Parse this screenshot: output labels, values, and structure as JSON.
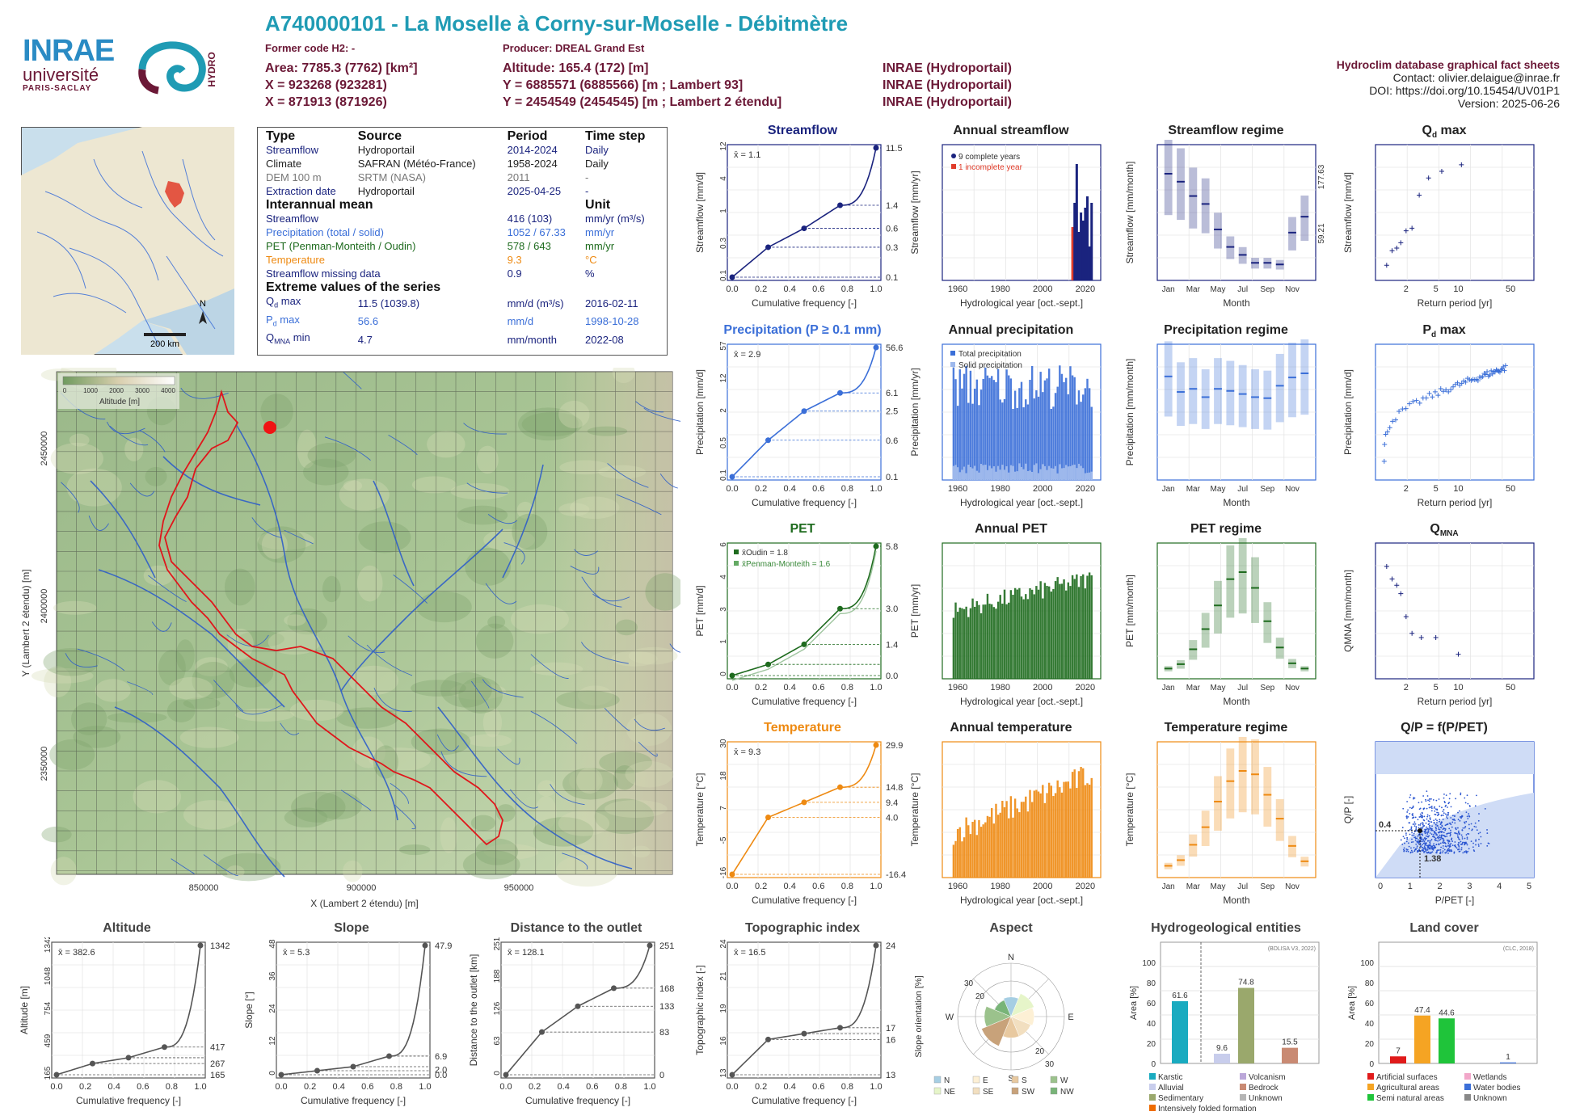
{
  "header": {
    "title": "A740000101 - La Moselle à Corny-sur-Moselle - Débitmètre",
    "former_code": "Former code H2: -",
    "producer": "Producer: DREAL Grand Est",
    "area": "Area: 7785.3 (7762) [km²]",
    "altitude": "Altitude: 165.4 (172) [m]",
    "x93": "X = 923268 (923281)",
    "y93": "Y = 6885571 (6885566) [m ; Lambert 93]",
    "x2e": "X = 871913 (871926)",
    "y2e": "Y = 2454549 (2454545) [m ; Lambert 2 étendu]",
    "src1": "INRAE (Hydroportail)",
    "src2": "INRAE (Hydroportail)",
    "src3": "INRAE (Hydroportail)",
    "right_title": "Hydroclim database graphical fact sheets",
    "contact": "Contact: olivier.delaigue@inrae.fr",
    "doi": "DOI: https://doi.org/10.15454/UV01P1",
    "version": "Version: 2025-06-26"
  },
  "logos": {
    "inrae": "INRAE",
    "universite": "université",
    "paris_saclay": "PARIS-SACLAY",
    "hydro": "HYDRO"
  },
  "locator_map": {
    "scale": "200 km",
    "north": "N",
    "accent": "#e03c2a"
  },
  "info_table": {
    "h_type": "Type",
    "h_source": "Source",
    "h_period": "Period",
    "h_timestep": "Time step",
    "rows": [
      {
        "type": "Streamflow",
        "source": "Hydroportail",
        "period": "2014-2024",
        "step": "Daily",
        "color": "#1a237e"
      },
      {
        "type": "Climate",
        "source": "SAFRAN (Météo-France)",
        "period": "1958-2024",
        "step": "Daily",
        "color": "#222222"
      },
      {
        "type": "DEM 100 m",
        "source": "SRTM (NASA)",
        "period": "2011",
        "step": "-",
        "color": "#777777"
      },
      {
        "type": "Extraction date",
        "source": "Hydroportail",
        "period": "2025-04-25",
        "step": "-",
        "color": "#1a237e"
      }
    ],
    "h_interannual": "Interannual mean",
    "h_unit": "Unit",
    "means": [
      {
        "label": "Streamflow",
        "value": "416 (103)",
        "unit": "mm/yr (m³/s)",
        "color": "#1a237e"
      },
      {
        "label": "Precipitation (total / solid)",
        "value": "1052 / 67.33",
        "unit": "mm/yr",
        "color": "#3b6fd8"
      },
      {
        "label": "PET (Penman-Monteith / Oudin)",
        "value": "578 / 643",
        "unit": "mm/yr",
        "color": "#1e6b1e"
      },
      {
        "label": "Temperature",
        "value": "9.3",
        "unit": "°C",
        "color": "#ee8a12"
      },
      {
        "label": "Streamflow missing data",
        "value": "0.9",
        "unit": "%",
        "color": "#1a237e"
      }
    ],
    "h_extreme": "Extreme values of the series",
    "extremes": [
      {
        "label": "Qd max",
        "value": "11.5 (1039.8)",
        "unit": "mm/d (m³/s)",
        "date": "2016-02-11",
        "color": "#1a237e"
      },
      {
        "label": "Pd max",
        "value": "56.6",
        "unit": "mm/d",
        "date": "1998-10-28",
        "color": "#3b6fd8"
      },
      {
        "label": "QMNA min",
        "value": "4.7",
        "unit": "mm/month",
        "date": "2022-08",
        "color": "#1a237e"
      }
    ]
  },
  "relief_map": {
    "legend_title": "Altitude [m]",
    "legend_ticks": [
      "0",
      "1000",
      "2000",
      "3000",
      "4000"
    ],
    "xlabel": "X (Lambert 2 étendu) [m]",
    "ylabel": "Y (Lambert 2 étendu) [m]",
    "xticks": [
      "850000",
      "900000",
      "950000"
    ],
    "yticks": [
      "2450000",
      "2400000",
      "2350000"
    ]
  },
  "chart_data": [
    {
      "id": "streamflow",
      "type": "line",
      "title": "Streamflow",
      "xlabel": "Cumulative frequency [-]",
      "ylabel": "Streamflow [mm/d]",
      "color": "#1a237e",
      "ylog": true,
      "mean_label": "x̄ = 1.1",
      "x": [
        0,
        0.25,
        0.5,
        0.75,
        1.0
      ],
      "y": [
        0.1,
        0.3,
        0.6,
        1.4,
        11.5
      ],
      "right_ticks": [
        "11.5",
        "1.4",
        "0.6",
        "0.3",
        "0.1"
      ]
    },
    {
      "id": "annual_streamflow",
      "type": "bar",
      "title": "Annual streamflow",
      "xlabel": "Hydrological year [oct.-sept.]",
      "ylabel": "Streamflow [mm/yr]",
      "color": "#1a237e",
      "legend": [
        "9 complete years",
        "1 incomplete year"
      ],
      "x": [
        2014,
        2015,
        2016,
        2017,
        2018,
        2019,
        2020,
        2021,
        2022,
        2023
      ],
      "y": [
        330,
        480,
        720,
        300,
        420,
        370,
        450,
        520,
        210,
        480
      ]
    },
    {
      "id": "streamflow_regime",
      "type": "bar",
      "title": "Streamflow regime",
      "xlabel": "Month",
      "ylabel": "Streamflow [mm/month]",
      "color": "#1a237e",
      "categories": [
        "Jan",
        "Feb",
        "Mar",
        "Apr",
        "May",
        "Jun",
        "Jul",
        "Aug",
        "Sep",
        "Oct",
        "Nov",
        "Dec"
      ],
      "y": [
        65,
        60,
        51,
        46,
        30,
        19,
        14,
        9,
        9,
        8,
        28,
        38
      ],
      "right_ticks": [
        "177.63",
        "59.21"
      ]
    },
    {
      "id": "qd_max",
      "type": "scatter",
      "title": "Qd max",
      "xlabel": "Return period [yr]",
      "ylabel": "Streamflow [mm/d]",
      "color": "#1a237e",
      "xticks": [
        "2",
        "5",
        "10",
        "50"
      ],
      "x": [
        1.1,
        1.3,
        1.5,
        1.7,
        2.0,
        2.4,
        3.0,
        4.0,
        6.0,
        11.0
      ],
      "y": [
        3.9,
        5.0,
        5.2,
        5.6,
        6.5,
        6.7,
        9.2,
        10.5,
        11.0,
        11.5
      ]
    },
    {
      "id": "precipitation",
      "type": "line",
      "title": "Precipitation (P ≥ 0.1 mm)",
      "xlabel": "Cumulative frequency [-]",
      "ylabel": "Precipitation [mm/d]",
      "color": "#3b6fd8",
      "ylog": true,
      "mean_label": "x̄ = 2.9",
      "x": [
        0,
        0.25,
        0.5,
        0.75,
        1.0
      ],
      "y": [
        0.1,
        0.6,
        2.5,
        6.1,
        56.6
      ],
      "right_ticks": [
        "56.6",
        "6.1",
        "2.5",
        "0.6",
        "0.1"
      ]
    },
    {
      "id": "annual_precipitation",
      "type": "bar",
      "title": "Annual precipitation",
      "xlabel": "Hydrological year [oct.-sept.]",
      "ylabel": "Precipitation [mm/yr]",
      "color": "#3b6fd8",
      "legend": [
        "Total precipitation",
        "Solid precipitation"
      ]
    },
    {
      "id": "precipitation_regime",
      "type": "bar",
      "title": "Precipitation regime",
      "xlabel": "Month",
      "ylabel": "Precipitation [mm/month]",
      "color": "#3b6fd8",
      "categories": [
        "Jan",
        "Feb",
        "Mar",
        "Apr",
        "May",
        "Jun",
        "Jul",
        "Aug",
        "Sep",
        "Oct",
        "Nov",
        "Dec"
      ],
      "y": [
        97,
        82,
        85,
        77,
        85,
        83,
        80,
        77,
        76,
        88,
        96,
        100
      ]
    },
    {
      "id": "pd_max",
      "type": "scatter",
      "title": "Pd max",
      "xlabel": "Return period [yr]",
      "ylabel": "Precipitation [mm/d]",
      "color": "#3b6fd8",
      "xticks": [
        "2",
        "5",
        "10",
        "50"
      ]
    },
    {
      "id": "pet",
      "type": "line",
      "title": "PET",
      "xlabel": "Cumulative frequency [-]",
      "ylabel": "PET [mm/d]",
      "color": "#1e6b1e",
      "legend": [
        "x̄Oudin = 1.8",
        "x̄Penman-Monteith = 1.6"
      ],
      "x": [
        0,
        0.25,
        0.5,
        0.75,
        1.0
      ],
      "y": [
        0.0,
        0.5,
        1.4,
        3.0,
        5.8
      ],
      "right_ticks": [
        "5.8",
        "3.0",
        "1.4",
        "0.0"
      ]
    },
    {
      "id": "annual_pet",
      "type": "bar",
      "title": "Annual PET",
      "xlabel": "Hydrological year [oct.-sept.]",
      "ylabel": "PET [mm/yr]",
      "color": "#1e6b1e"
    },
    {
      "id": "pet_regime",
      "type": "bar",
      "title": "PET regime",
      "xlabel": "Month",
      "ylabel": "PET [mm/month]",
      "color": "#1e6b1e",
      "categories": [
        "Jan",
        "Feb",
        "Mar",
        "Apr",
        "May",
        "Jun",
        "Jul",
        "Aug",
        "Sep",
        "Oct",
        "Nov",
        "Dec"
      ],
      "y": [
        8,
        13,
        30,
        53,
        80,
        110,
        118,
        100,
        62,
        32,
        14,
        8
      ]
    },
    {
      "id": "qmna",
      "type": "scatter",
      "title": "QMNA",
      "xlabel": "Return period [yr]",
      "ylabel": "QMNA [mm/month]",
      "color": "#1a237e",
      "xticks": [
        "2",
        "5",
        "10",
        "50"
      ],
      "x": [
        1.1,
        1.3,
        1.5,
        1.7,
        2.0,
        2.4,
        3.2,
        5.0,
        10.0
      ],
      "y": [
        8.9,
        8.3,
        8.0,
        7.6,
        6.5,
        5.7,
        5.5,
        5.5,
        4.7
      ]
    },
    {
      "id": "temperature",
      "type": "line",
      "title": "Temperature",
      "xlabel": "Cumulative frequency [-]",
      "ylabel": "Temperature [°C]",
      "color": "#ee8a12",
      "mean_label": "x̄ = 9.3",
      "x": [
        0,
        0.25,
        0.5,
        0.75,
        1.0
      ],
      "y": [
        -16.4,
        4.0,
        9.4,
        14.8,
        29.9
      ],
      "right_ticks": [
        "29.9",
        "14.8",
        "9.4",
        "4.0",
        "-16.4"
      ]
    },
    {
      "id": "annual_temperature",
      "type": "bar",
      "title": "Annual temperature",
      "xlabel": "Hydrological year [oct.-sept.]",
      "ylabel": "Temperature [°C]",
      "color": "#ee8a12"
    },
    {
      "id": "temperature_regime",
      "type": "bar",
      "title": "Temperature regime",
      "xlabel": "Month",
      "ylabel": "Temperature [°C]",
      "color": "#ee8a12",
      "categories": [
        "Jan",
        "Feb",
        "Mar",
        "Apr",
        "May",
        "Jun",
        "Jul",
        "Aug",
        "Sep",
        "Oct",
        "Nov",
        "Dec"
      ],
      "y": [
        1.5,
        2.5,
        5.2,
        8.3,
        12.8,
        16.4,
        18.2,
        17.6,
        14.0,
        9.8,
        5.0,
        2.3
      ]
    },
    {
      "id": "qp_ppet",
      "type": "scatter",
      "title": "Q/P = f(P/PET)",
      "xlabel": "P/PET [-]",
      "ylabel": "Q/P [-]",
      "color": "#2a55d0",
      "annotations": [
        "0.4",
        "1.38"
      ]
    },
    {
      "id": "altitude",
      "type": "line",
      "title": "Altitude",
      "xlabel": "Cumulative frequency [-]",
      "ylabel": "Altitude [m]",
      "color": "#555555",
      "mean_label": "x̄ = 382.6",
      "x": [
        0,
        0.25,
        0.5,
        0.75,
        1.0
      ],
      "y": [
        165,
        267,
        320,
        417,
        1342
      ],
      "right_ticks": [
        "1342",
        "417",
        "267",
        "165"
      ]
    },
    {
      "id": "slope",
      "type": "line",
      "title": "Slope",
      "xlabel": "Cumulative frequency [-]",
      "ylabel": "Slope [°]",
      "color": "#555555",
      "mean_label": "x̄ = 5.3",
      "x": [
        0,
        0.25,
        0.5,
        0.75,
        1.0
      ],
      "y": [
        0.0,
        1.5,
        3.0,
        6.9,
        47.9
      ],
      "right_ticks": [
        "47.9",
        "6.9",
        "2.0",
        "0.0"
      ]
    },
    {
      "id": "distance",
      "type": "line",
      "title": "Distance to the outlet",
      "xlabel": "Cumulative frequency [-]",
      "ylabel": "Distance to the outlet [km]",
      "color": "#555555",
      "mean_label": "x̄ = 128.1",
      "x": [
        0,
        0.25,
        0.5,
        0.75,
        1.0
      ],
      "y": [
        0,
        83,
        133,
        168,
        251
      ],
      "right_ticks": [
        "251",
        "168",
        "133",
        "83",
        "0"
      ]
    },
    {
      "id": "topographic_index",
      "type": "line",
      "title": "Topographic index",
      "xlabel": "Cumulative frequency [-]",
      "ylabel": "Topographic index [-]",
      "color": "#555555",
      "mean_label": "x̄ = 16.5",
      "x": [
        0,
        0.25,
        0.5,
        0.75,
        1.0
      ],
      "y": [
        13,
        16,
        16.5,
        17,
        24
      ],
      "right_ticks": [
        "24",
        "17",
        "16",
        "13"
      ]
    },
    {
      "id": "aspect",
      "type": "pie",
      "title": "Aspect",
      "ylabel": "Slope orientation [%]",
      "categories": [
        "N",
        "NE",
        "E",
        "SE",
        "S",
        "SW",
        "W",
        "NW"
      ],
      "values": [
        11,
        14,
        13,
        12,
        12,
        18,
        15,
        10
      ],
      "colors": [
        "#a6cee3",
        "#e6f5c9",
        "#fdf0d5",
        "#f2dfc0",
        "#e8c9a0",
        "#c8a27a",
        "#9bc28c",
        "#78b478"
      ]
    },
    {
      "id": "hydrogeology",
      "type": "bar",
      "title": "Hydrogeological entities",
      "ylabel": "Area [%]",
      "note": "(BDLISA V3, 2022)",
      "categories": [
        "Karstic",
        "Alluvial",
        "Sedimentary",
        "Intensively folded formation",
        "Volcanism",
        "Bedrock",
        "Unknown"
      ],
      "values": [
        61.6,
        9.6,
        74.8,
        0,
        0,
        15.5,
        0
      ],
      "colors": [
        "#1aabc0",
        "#c8cdec",
        "#9aa86c",
        "#ee6c00",
        "#bba7d9",
        "#c98a73",
        "#b5b5b5"
      ]
    },
    {
      "id": "land_cover",
      "type": "bar",
      "title": "Land cover",
      "ylabel": "Area [%]",
      "note": "(CLC, 2018)",
      "categories": [
        "Artificial surfaces",
        "Agricultural areas",
        "Semi natural areas",
        "Wetlands",
        "Water bodies",
        "Unknown"
      ],
      "values": [
        7,
        47.4,
        44.6,
        0,
        1,
        0
      ],
      "colors": [
        "#e01b1b",
        "#f5a423",
        "#1fc43a",
        "#f2a7c9",
        "#3b6fd8",
        "#888888"
      ]
    }
  ]
}
